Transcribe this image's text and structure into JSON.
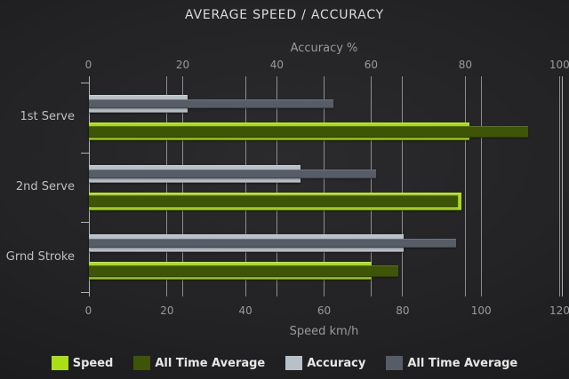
{
  "chart_data": {
    "type": "bar",
    "orientation": "horizontal",
    "title": "AVERAGE SPEED / ACCURACY",
    "categories": [
      "1st Serve",
      "2nd Serve",
      "Grnd Stroke"
    ],
    "axes": {
      "top": {
        "label": "Accuracy %",
        "min": 0,
        "max": 100,
        "ticks": [
          0,
          20,
          40,
          60,
          80,
          100
        ]
      },
      "bottom": {
        "label": "Speed km/h",
        "min": 0,
        "max": 120,
        "ticks": [
          0,
          20,
          40,
          60,
          80,
          100,
          120
        ]
      }
    },
    "series": [
      {
        "name": "Speed",
        "axis": "bottom",
        "values": [
          97,
          95,
          72
        ],
        "color": "#abdf15"
      },
      {
        "name": "All Time Average",
        "axis": "bottom",
        "values": [
          112,
          94,
          79
        ],
        "color": "#3e5407"
      },
      {
        "name": "Accuracy",
        "axis": "top",
        "values": [
          21,
          45,
          67
        ],
        "color": "#b9c1c8"
      },
      {
        "name": "All Time Average",
        "axis": "top",
        "values": [
          52,
          61,
          78
        ],
        "color": "#565d66"
      }
    ],
    "legend_position": "bottom",
    "grid": true,
    "colors": {
      "background_center": "#2b2b2d",
      "background_edge": "#151517",
      "title_text": "#dcdcdc",
      "axis_text": "#9a9a9a",
      "category_text": "#bdbfc1",
      "legend_text": "#e7e7e7",
      "gridline": "#8d8d8d"
    }
  }
}
